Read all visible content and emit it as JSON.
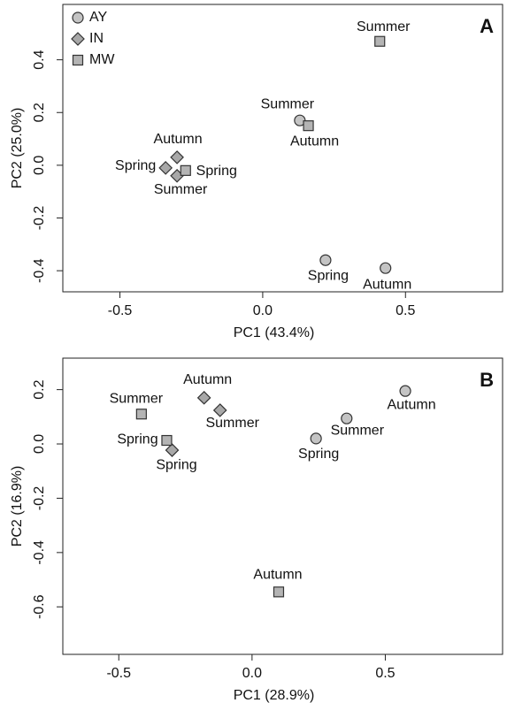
{
  "chart_data": [
    {
      "type": "scatter",
      "panel_label": "A",
      "xlabel": "PC1 (43.4%)",
      "ylabel": "PC2 (25.0%)",
      "xlim": [
        -0.7,
        0.84
      ],
      "ylim": [
        -0.48,
        0.61
      ],
      "xticks": [
        -0.5,
        {
          "value": 0,
          "label": "0.0"
        },
        0.5
      ],
      "yticks": [
        -0.4,
        -0.2,
        {
          "value": 0,
          "label": "0.0"
        },
        0.2,
        0.4
      ],
      "legend": "upper left",
      "series": [
        {
          "name": "AY",
          "marker": "circle",
          "color": "#c4c4c4",
          "x": [
            0.13,
            0.22,
            0.43
          ],
          "values": [
            0.17,
            -0.36,
            -0.39
          ],
          "labels": [
            "Summer",
            "Spring",
            "Autumn"
          ]
        },
        {
          "name": "IN",
          "marker": "diamond",
          "color": "#a8a8a8",
          "x": [
            -0.3,
            -0.34,
            -0.3
          ],
          "values": [
            0.03,
            -0.01,
            -0.04
          ],
          "labels": [
            "Autumn",
            "Spring",
            "Summer"
          ]
        },
        {
          "name": "MW",
          "marker": "square",
          "color": "#b4b4b4",
          "x": [
            0.41,
            0.16,
            -0.27
          ],
          "values": [
            0.47,
            0.15,
            -0.02
          ],
          "labels": [
            "Summer",
            "Autumn",
            "Spring"
          ]
        }
      ]
    },
    {
      "type": "scatter",
      "panel_label": "B",
      "xlabel": "PC1 (28.9%)",
      "ylabel": "PC2 (16.9%)",
      "xlim": [
        -0.71,
        0.94
      ],
      "ylim": [
        -0.775,
        0.316
      ],
      "xticks": [
        -0.5,
        {
          "value": 0,
          "label": "0.0"
        },
        0.5
      ],
      "yticks": [
        -0.6,
        -0.4,
        -0.2,
        {
          "value": 0,
          "label": "0.0"
        },
        0.2
      ],
      "series": [
        {
          "marker": "circle",
          "color": "#c4c4c4",
          "x": [
            0.575,
            0.355,
            0.24
          ],
          "values": [
            0.195,
            0.094,
            0.02
          ],
          "labels": [
            "Autumn",
            "Summer",
            "Spring"
          ]
        },
        {
          "marker": "diamond",
          "color": "#a8a8a8",
          "x": [
            -0.18,
            -0.12,
            -0.3
          ],
          "values": [
            0.17,
            0.124,
            -0.023
          ],
          "labels": [
            "Autumn",
            "Summer",
            "Spring"
          ]
        },
        {
          "marker": "square",
          "color": "#b4b4b4",
          "x": [
            -0.415,
            -0.32,
            0.1
          ],
          "values": [
            0.11,
            0.013,
            -0.545
          ],
          "labels": [
            "Summer",
            "Spring",
            "Autumn"
          ]
        }
      ]
    }
  ]
}
